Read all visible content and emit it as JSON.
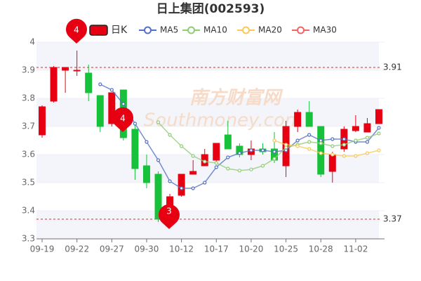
{
  "chart_data": {
    "type": "candlestick",
    "title": "日上集团(002593)",
    "watermark": [
      "南方财富网",
      "Southmoney.com"
    ],
    "categories": [
      "09-19",
      null,
      null,
      "09-22",
      null,
      null,
      "09-27",
      null,
      null,
      "09-30",
      null,
      null,
      "10-12",
      null,
      null,
      "10-17",
      null,
      null,
      "10-20",
      null,
      null,
      "10-25",
      null,
      null,
      "10-28",
      null,
      null,
      "11-02",
      null,
      null
    ],
    "series": [
      {
        "name": "日K",
        "up_color": "#e60012",
        "down_color": "#17c13a",
        "open": [
          3.67,
          3.79,
          3.9,
          3.9,
          3.89,
          3.81,
          3.71,
          3.83,
          3.69,
          3.56,
          3.53,
          3.35,
          3.455,
          3.53,
          3.56,
          3.58,
          3.67,
          3.63,
          3.6,
          3.62,
          3.62,
          3.56,
          3.7,
          3.75,
          3.7,
          3.54,
          3.62,
          3.685,
          3.68,
          3.71
        ],
        "high": [
          3.775,
          3.915,
          3.91,
          3.97,
          3.92,
          3.81,
          3.82,
          3.83,
          3.71,
          3.6,
          3.54,
          3.46,
          3.53,
          3.58,
          3.62,
          3.64,
          3.72,
          3.64,
          3.65,
          3.64,
          3.68,
          3.72,
          3.76,
          3.79,
          3.7,
          3.61,
          3.7,
          3.74,
          3.73,
          3.76
        ],
        "low": [
          3.66,
          3.785,
          3.82,
          3.88,
          3.79,
          3.68,
          3.7,
          3.65,
          3.51,
          3.48,
          3.36,
          3.34,
          3.45,
          3.53,
          3.56,
          3.57,
          3.62,
          3.59,
          3.58,
          3.6,
          3.57,
          3.52,
          3.68,
          3.7,
          3.52,
          3.5,
          3.61,
          3.68,
          3.68,
          3.71
        ],
        "close": [
          3.77,
          3.91,
          3.91,
          3.9,
          3.82,
          3.7,
          3.82,
          3.66,
          3.55,
          3.5,
          3.37,
          3.45,
          3.53,
          3.54,
          3.6,
          3.64,
          3.62,
          3.6,
          3.62,
          3.61,
          3.58,
          3.7,
          3.75,
          3.7,
          3.53,
          3.6,
          3.69,
          3.7,
          3.71,
          3.76
        ]
      },
      {
        "name": "MA5",
        "color": "#5470c6",
        "values": [
          null,
          null,
          null,
          null,
          null,
          3.85,
          3.83,
          3.78,
          3.71,
          3.645,
          3.58,
          3.505,
          3.48,
          3.48,
          3.5,
          3.555,
          3.59,
          3.605,
          3.615,
          3.615,
          3.61,
          3.615,
          3.65,
          3.67,
          3.65,
          3.655,
          3.655,
          3.645,
          3.645,
          3.695
        ]
      },
      {
        "name": "MA10",
        "color": "#91cc75",
        "values": [
          null,
          null,
          null,
          null,
          null,
          null,
          null,
          null,
          null,
          null,
          3.715,
          3.67,
          3.63,
          3.595,
          3.575,
          3.57,
          3.55,
          3.543,
          3.547,
          3.56,
          3.585,
          3.625,
          3.635,
          3.645,
          3.64,
          3.63,
          3.635,
          3.65,
          3.66,
          3.675
        ]
      },
      {
        "name": "MA20",
        "color": "#fac858",
        "values": [
          null,
          null,
          null,
          null,
          null,
          null,
          null,
          null,
          null,
          null,
          null,
          null,
          null,
          null,
          null,
          null,
          null,
          null,
          null,
          null,
          3.65,
          3.635,
          3.63,
          3.62,
          3.605,
          3.6,
          3.595,
          3.595,
          3.605,
          3.615
        ]
      },
      {
        "name": "MA30",
        "color": "#ee6666",
        "values": [
          null,
          null,
          null,
          null,
          null,
          null,
          null,
          null,
          null,
          null,
          null,
          null,
          null,
          null,
          null,
          null,
          null,
          null,
          null,
          null,
          null,
          null,
          null,
          null,
          null,
          null,
          null,
          null,
          null,
          null
        ]
      }
    ],
    "reference_lines": [
      3.91,
      3.37
    ],
    "reference_color": "#c23531",
    "annotations": [
      "4",
      "4",
      "3"
    ],
    "ylim": [
      3.3,
      4
    ],
    "yticks": [
      3.3,
      3.4,
      3.5,
      3.6,
      3.7,
      3.8,
      3.9,
      4
    ]
  }
}
